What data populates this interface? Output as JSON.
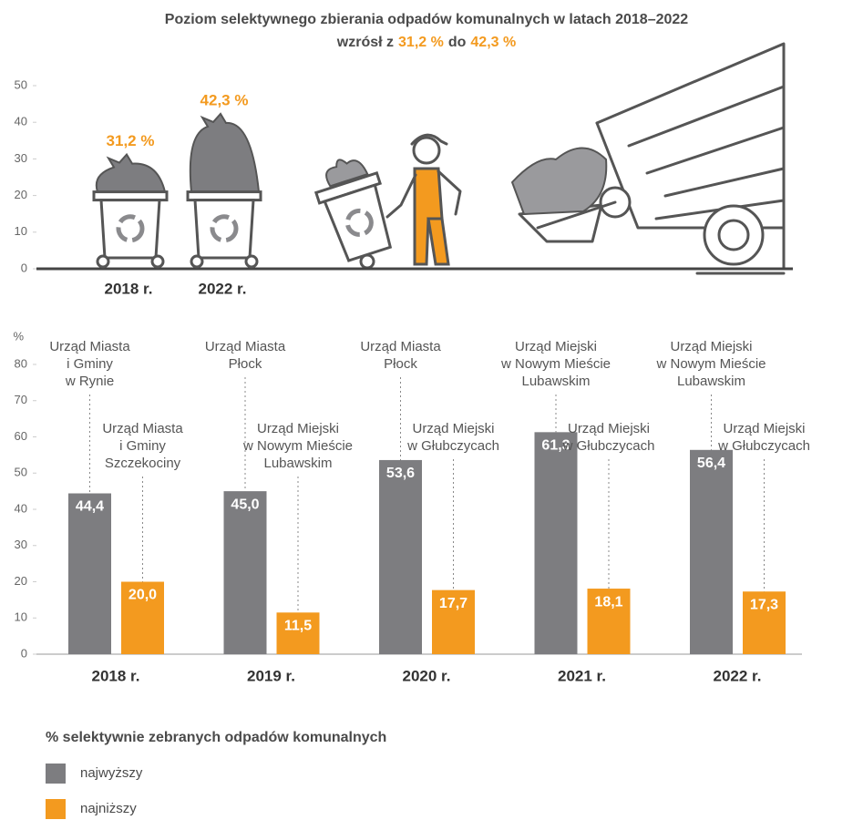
{
  "chart_data": [
    {
      "type": "pictogram",
      "title": "Poziom selektywnego zbierania odpadów komunalnych w latach 2018–2022",
      "subtitle": [
        "wzrósł z",
        "31,2 %",
        "do",
        "42,3 %"
      ],
      "categories": [
        "2018 r.",
        "2022 r."
      ],
      "values": [
        31.2,
        42.3
      ],
      "value_labels": [
        "31,2 %",
        "42,3 %"
      ],
      "color": "#7d7d80",
      "label_color": "#f39a1f",
      "ylim": [
        0,
        50
      ],
      "yticks": [
        0,
        10,
        20,
        30,
        40,
        50
      ]
    },
    {
      "type": "bar",
      "ylabel": "%",
      "categories": [
        "2018 r.",
        "2019 r.",
        "2020 r.",
        "2021 r.",
        "2022 r."
      ],
      "ylim": [
        0,
        80
      ],
      "yticks": [
        0,
        10,
        20,
        30,
        40,
        50,
        60,
        70,
        80
      ],
      "legend_title": "% selektywnie zebranych odpadów komunalnych",
      "legend": "bottom-left",
      "series": [
        {
          "name": "najwyższy",
          "color": "#7d7d80",
          "values": [
            44.4,
            45.0,
            53.6,
            61.3,
            56.4
          ],
          "value_labels": [
            "44,4",
            "45,0",
            "53,6",
            "61,3",
            "56,4"
          ],
          "annotations": [
            [
              "Urząd Miasta",
              "i Gminy",
              "w Rynie"
            ],
            [
              "Urząd Miasta",
              "Płock"
            ],
            [
              "Urząd Miasta",
              "Płock"
            ],
            [
              "Urząd Miejski",
              "w Nowym Mieście",
              "Lubawskim"
            ],
            [
              "Urząd Miejski",
              "w Nowym Mieście",
              "Lubawskim"
            ]
          ]
        },
        {
          "name": "najniższy",
          "color": "#f39a1f",
          "values": [
            20.0,
            11.5,
            17.7,
            18.1,
            17.3
          ],
          "value_labels": [
            "20,0",
            "11,5",
            "17,7",
            "18,1",
            "17,3"
          ],
          "annotations": [
            [
              "Urząd Miasta",
              "i Gminy",
              "Szczekociny"
            ],
            [
              "Urząd Miejski",
              "w Nowym Mieście",
              "Lubawskim"
            ],
            [
              "Urząd Miejski",
              "w Głubczycach"
            ],
            [
              "Urząd Miejski",
              "w Głubczycach"
            ],
            [
              "Urząd Miejski",
              "w Głubczycach"
            ]
          ]
        }
      ]
    }
  ]
}
